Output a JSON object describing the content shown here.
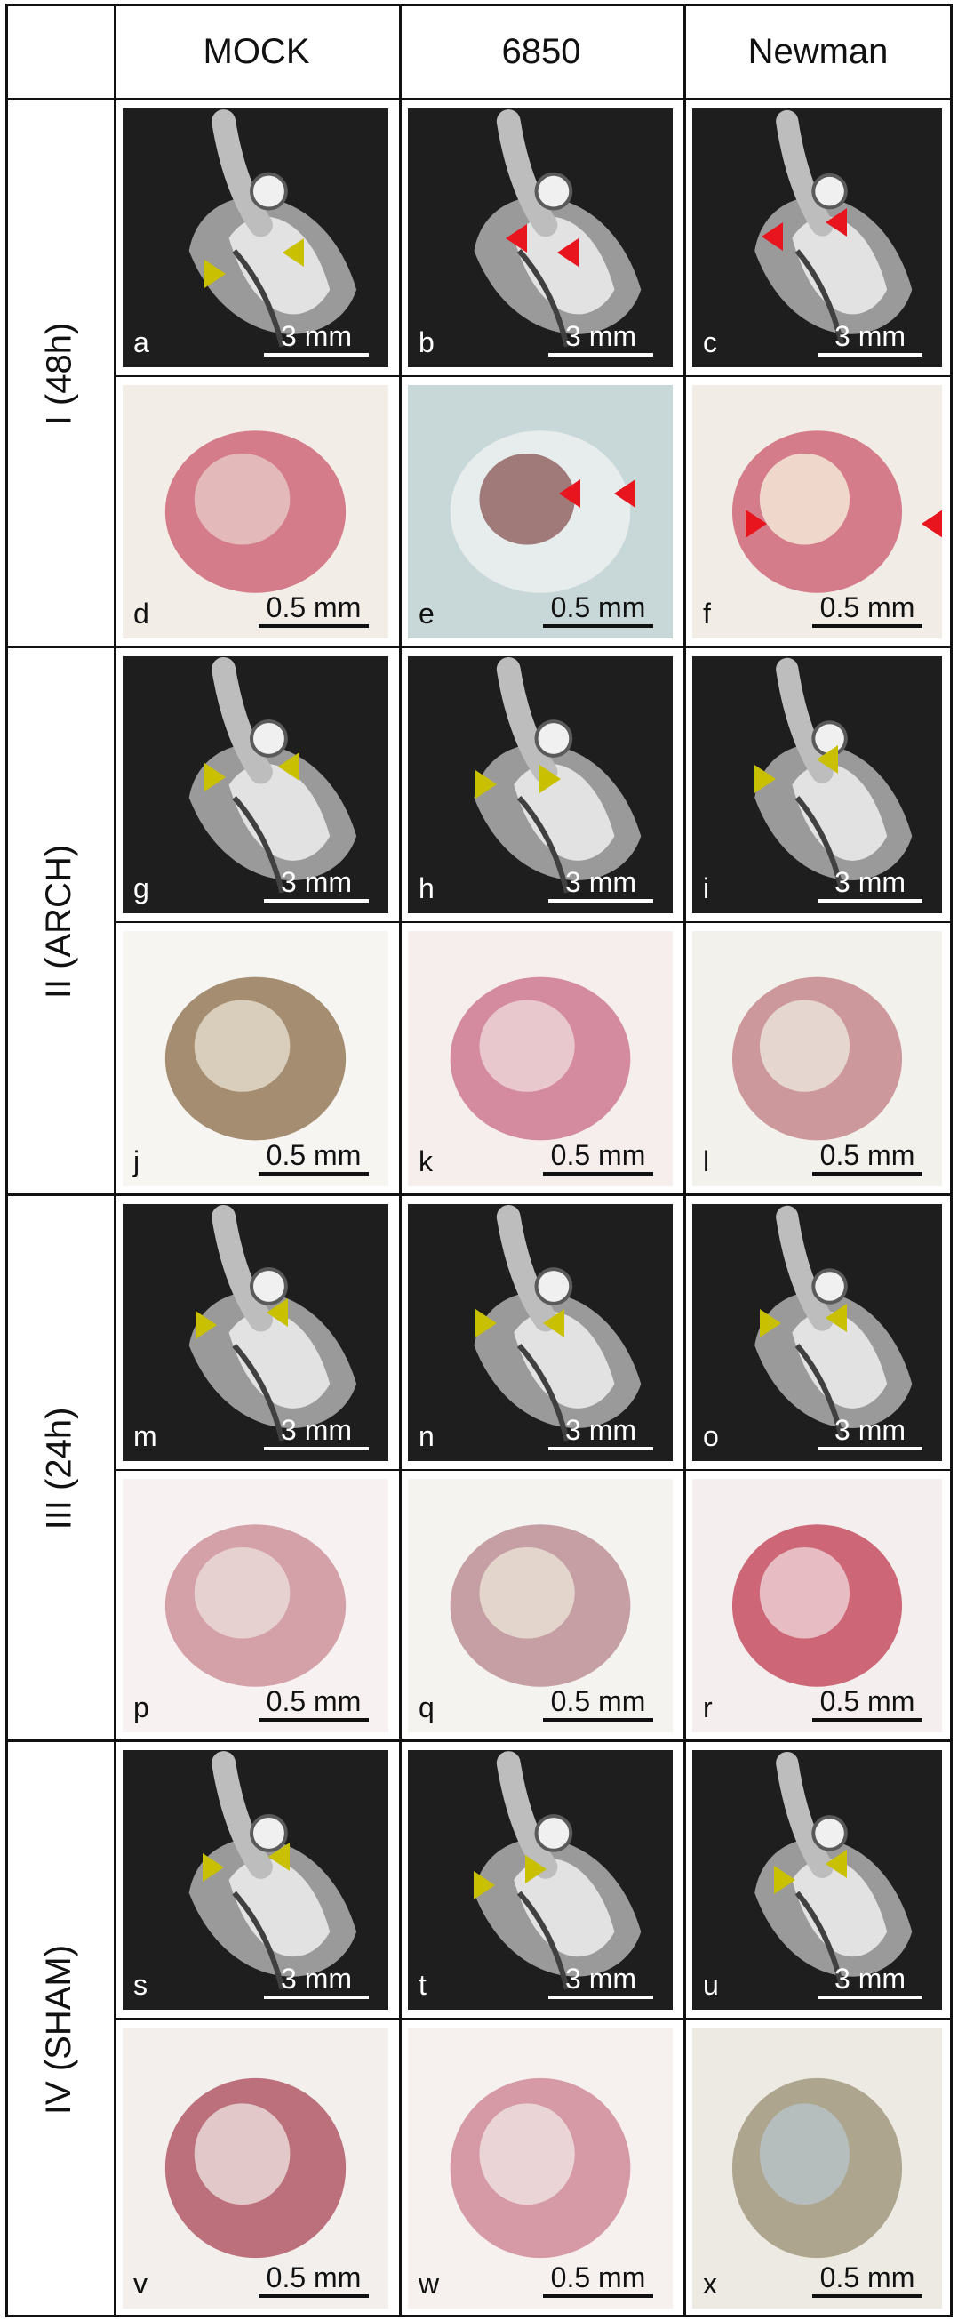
{
  "columns": [
    "MOCK",
    "6850",
    "Newman"
  ],
  "rows": [
    {
      "label": "I (48h)",
      "mri": [
        {
          "letter": "a",
          "scale": "3 mm",
          "arrow_color": "#c8c000"
        },
        {
          "letter": "b",
          "scale": "3 mm",
          "arrow_color": "#e8141e"
        },
        {
          "letter": "c",
          "scale": "3 mm",
          "arrow_color": "#e8141e"
        }
      ],
      "photo": [
        {
          "letter": "d",
          "scale": "0.5 mm"
        },
        {
          "letter": "e",
          "scale": "0.5 mm",
          "arrow_color": "#e8141e"
        },
        {
          "letter": "f",
          "scale": "0.5 mm",
          "arrow_color": "#e8141e"
        }
      ]
    },
    {
      "label": "II (ARCH)",
      "mri": [
        {
          "letter": "g",
          "scale": "3 mm",
          "arrow_color": "#c8c000"
        },
        {
          "letter": "h",
          "scale": "3 mm",
          "arrow_color": "#c8c000"
        },
        {
          "letter": "i",
          "scale": "3 mm",
          "arrow_color": "#c8c000"
        }
      ],
      "photo": [
        {
          "letter": "j",
          "scale": "0.5 mm"
        },
        {
          "letter": "k",
          "scale": "0.5 mm"
        },
        {
          "letter": "l",
          "scale": "0.5 mm"
        }
      ]
    },
    {
      "label": "III (24h)",
      "mri": [
        {
          "letter": "m",
          "scale": "3 mm",
          "arrow_color": "#c8c000"
        },
        {
          "letter": "n",
          "scale": "3 mm",
          "arrow_color": "#c8c000"
        },
        {
          "letter": "o",
          "scale": "3 mm",
          "arrow_color": "#c8c000"
        }
      ],
      "photo": [
        {
          "letter": "p",
          "scale": "0.5 mm"
        },
        {
          "letter": "q",
          "scale": "0.5 mm"
        },
        {
          "letter": "r",
          "scale": "0.5 mm"
        }
      ]
    },
    {
      "label": "IV (SHAM)",
      "mri": [
        {
          "letter": "s",
          "scale": "3 mm",
          "arrow_color": "#c8c000"
        },
        {
          "letter": "t",
          "scale": "3 mm",
          "arrow_color": "#c8c000"
        },
        {
          "letter": "u",
          "scale": "3 mm",
          "arrow_color": "#c8c000"
        }
      ],
      "photo": [
        {
          "letter": "v",
          "scale": "0.5 mm"
        },
        {
          "letter": "w",
          "scale": "0.5 mm"
        },
        {
          "letter": "x",
          "scale": "0.5 mm"
        }
      ]
    }
  ]
}
